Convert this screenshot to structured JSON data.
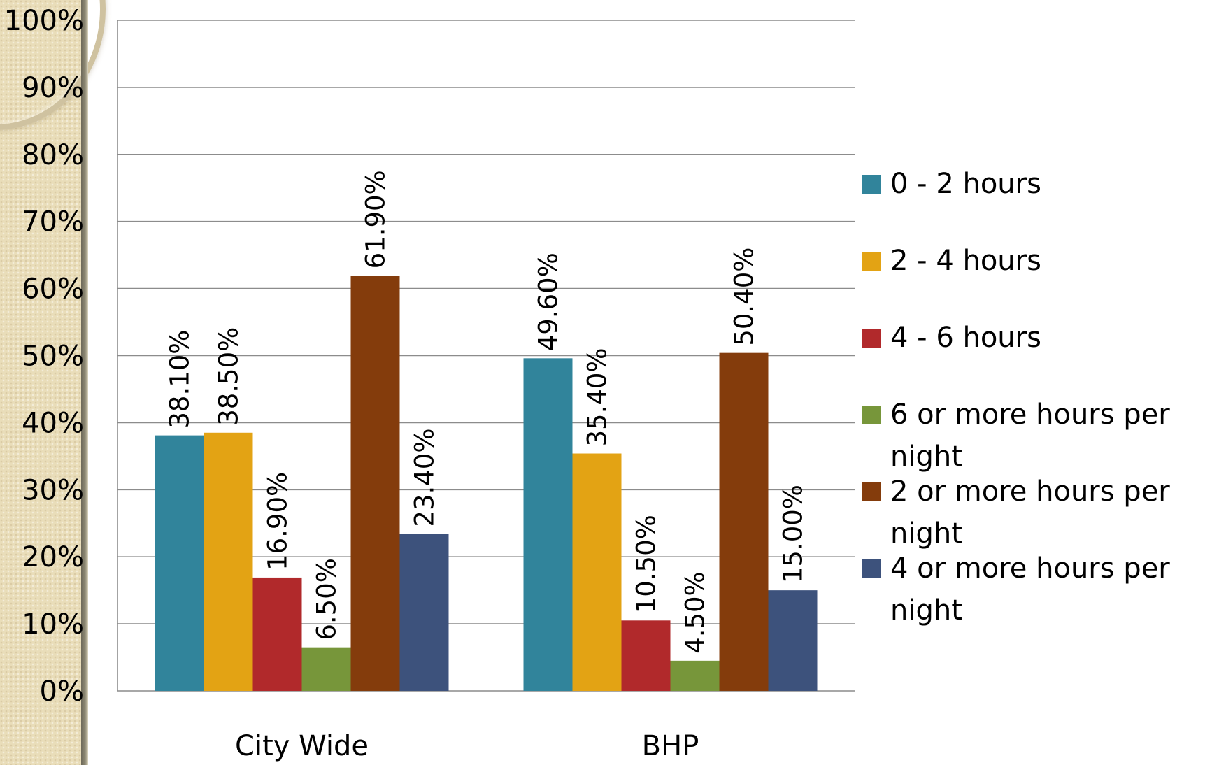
{
  "chart_data": {
    "type": "bar",
    "categories": [
      "City Wide",
      "BHP"
    ],
    "series": [
      {
        "name": "0 - 2 hours",
        "values": [
          38.1,
          49.6
        ],
        "labels": [
          "38.10%",
          "49.60%"
        ],
        "color": "#31849b"
      },
      {
        "name": "2 - 4 hours",
        "values": [
          38.5,
          35.4
        ],
        "labels": [
          "38.50%",
          "35.40%"
        ],
        "color": "#e3a314"
      },
      {
        "name": "4 - 6 hours",
        "values": [
          16.9,
          10.5
        ],
        "labels": [
          "16.90%",
          "10.50%"
        ],
        "color": "#b1292b"
      },
      {
        "name": "6 or more hours per night",
        "values": [
          6.5,
          4.5
        ],
        "labels": [
          "6.50%",
          "4.50%"
        ],
        "color": "#77963a"
      },
      {
        "name": "2 or more hours per night",
        "values": [
          61.9,
          50.4
        ],
        "labels": [
          "61.90%",
          "50.40%"
        ],
        "color": "#843c0c"
      },
      {
        "name": "4 or more hours per night",
        "values": [
          23.4,
          15.0
        ],
        "labels": [
          "23.40%",
          "15.00%"
        ],
        "color": "#3d527c"
      }
    ],
    "y_ticks": [
      "0%",
      "10%",
      "20%",
      "30%",
      "40%",
      "50%",
      "60%",
      "70%",
      "80%",
      "90%",
      "100%"
    ],
    "ylim": [
      0,
      100
    ],
    "grid": true,
    "legend_position": "right",
    "title": "",
    "xlabel": "",
    "ylabel": ""
  }
}
